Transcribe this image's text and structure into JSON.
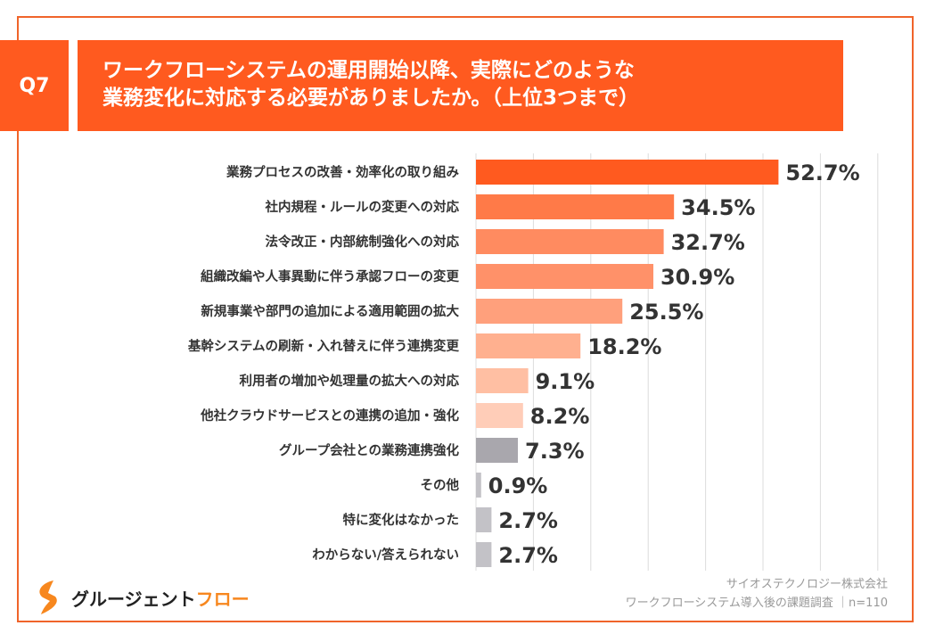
{
  "header": {
    "question": "Q7",
    "title_lines": [
      "ワークフローシステムの運用開始以降、実際にどのような",
      "業務変化に対応する必要がありましたか。（上位3つまで）"
    ]
  },
  "chart_data": {
    "type": "bar",
    "orientation": "horizontal",
    "categories": [
      "業務プロセスの改善・効率化の取り組み",
      "社内規程・ルールの変更への対応",
      "法令改正・内部統制強化への対応",
      "組織改編や人事異動に伴う承認フローの変更",
      "新規事業や部門の追加による適用範囲の拡大",
      "基幹システムの刷新・入れ替えに伴う連携変更",
      "利用者の増加や処理量の拡大への対応",
      "他社クラウドサービスとの連携の追加・強化",
      "グループ会社との業務連携強化",
      "その他",
      "特に変化はなかった",
      "わからない/答えられない"
    ],
    "values": [
      52.7,
      34.5,
      32.7,
      30.9,
      25.5,
      18.2,
      9.1,
      8.2,
      7.3,
      0.9,
      2.7,
      2.7
    ],
    "value_labels": [
      "52.7%",
      "34.5%",
      "32.7%",
      "30.9%",
      "25.5%",
      "18.2%",
      "9.1%",
      "8.2%",
      "7.3%",
      "0.9%",
      "2.7%",
      "2.7%"
    ],
    "colors": [
      "#ff5a1f",
      "#ff7a48",
      "#ff8b60",
      "#ff9169",
      "#ffa07c",
      "#ffb08f",
      "#ffbfa3",
      "#ffcdb8",
      "#a9a7ad",
      "#c3c2c7",
      "#c3c2c7",
      "#c3c2c7"
    ],
    "xlim": [
      0,
      70
    ],
    "grid": true
  },
  "footer": {
    "logo_main": "グルージェント",
    "logo_accent": "フロー",
    "credit_line1": "サイオステクノロジー株式会社",
    "credit_line2": "ワークフローシステム導入後の課題調査 ｜n=110"
  },
  "accent": "#ff5a1f"
}
